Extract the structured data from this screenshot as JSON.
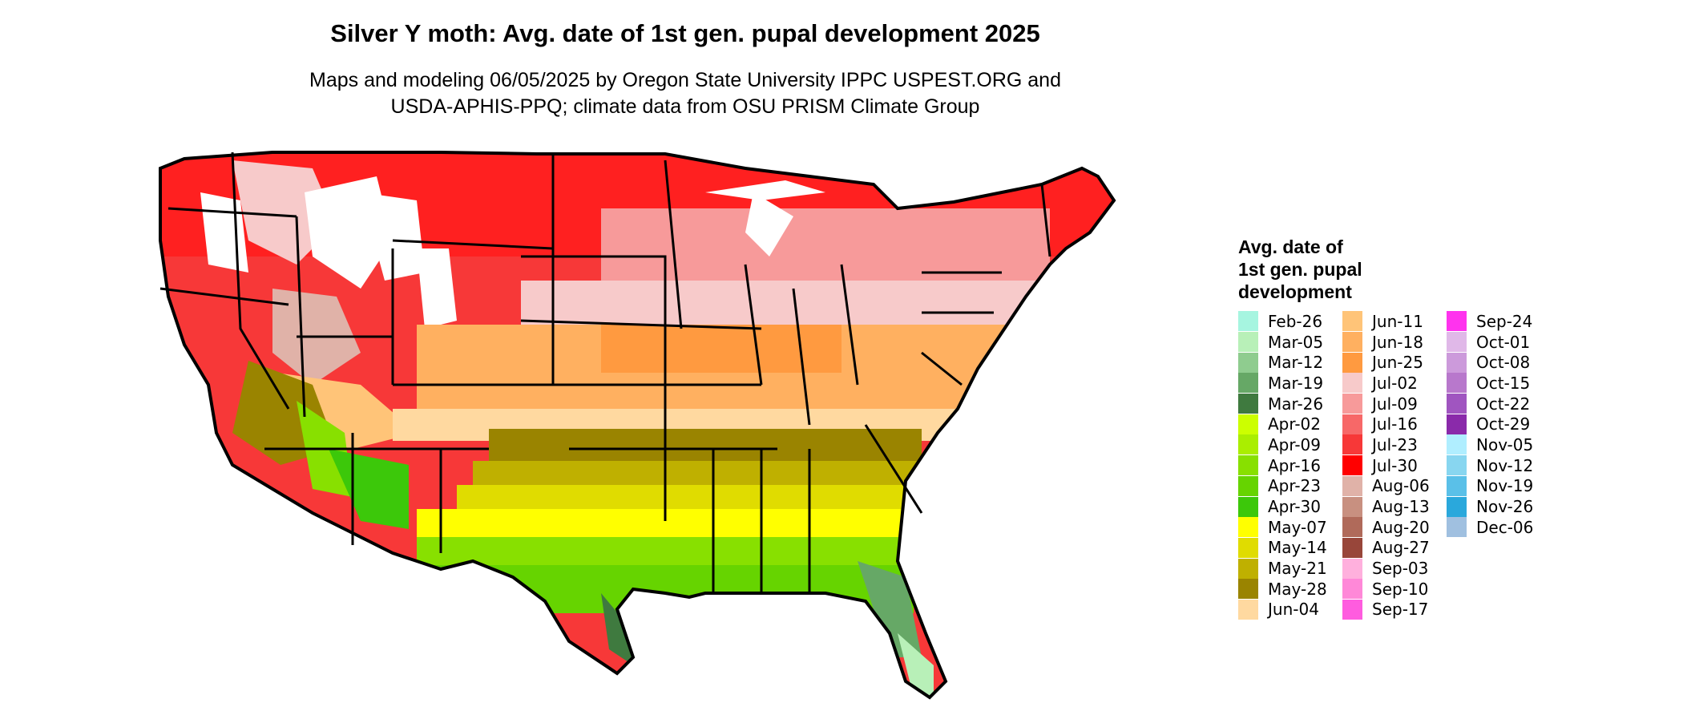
{
  "title": "Silver Y moth: Avg. date of 1st gen. pupal development 2025",
  "subtitle_line1": "Maps and modeling 06/05/2025 by Oregon State University IPPC USPEST.ORG and",
  "subtitle_line2": "USDA-APHIS-PPQ; climate data from OSU PRISM Climate Group",
  "legend": {
    "title_line1": "Avg. date of",
    "title_line2": "1st gen. pupal",
    "title_line3": "development",
    "columns": [
      [
        {
          "label": "Feb-26",
          "color": "#a6f5e0"
        },
        {
          "label": "Mar-05",
          "color": "#b8f0b8"
        },
        {
          "label": "Mar-12",
          "color": "#8fcc8f"
        },
        {
          "label": "Mar-19",
          "color": "#66a866"
        },
        {
          "label": "Mar-26",
          "color": "#3f7a3f"
        },
        {
          "label": "Apr-02",
          "color": "#ccff00"
        },
        {
          "label": "Apr-09",
          "color": "#aaee00"
        },
        {
          "label": "Apr-16",
          "color": "#88e000"
        },
        {
          "label": "Apr-23",
          "color": "#66d400"
        },
        {
          "label": "Apr-30",
          "color": "#3cc80a"
        },
        {
          "label": "May-07",
          "color": "#ffff00"
        },
        {
          "label": "May-14",
          "color": "#e0dc00"
        },
        {
          "label": "May-21",
          "color": "#bfb000"
        },
        {
          "label": "May-28",
          "color": "#9a8400"
        },
        {
          "label": "Jun-04",
          "color": "#ffd9a0"
        }
      ],
      [
        {
          "label": "Jun-11",
          "color": "#ffc478"
        },
        {
          "label": "Jun-18",
          "color": "#ffb060"
        },
        {
          "label": "Jun-25",
          "color": "#ff9a40"
        },
        {
          "label": "Jul-02",
          "color": "#f7caca"
        },
        {
          "label": "Jul-09",
          "color": "#f79a9a"
        },
        {
          "label": "Jul-16",
          "color": "#f76868"
        },
        {
          "label": "Jul-23",
          "color": "#f73838"
        },
        {
          "label": "Jul-30",
          "color": "#ff0000"
        },
        {
          "label": "Aug-06",
          "color": "#e0b2a8"
        },
        {
          "label": "Aug-13",
          "color": "#c89080"
        },
        {
          "label": "Aug-20",
          "color": "#b06a5a"
        },
        {
          "label": "Aug-27",
          "color": "#98463a"
        },
        {
          "label": "Sep-03",
          "color": "#ffb0dd"
        },
        {
          "label": "Sep-10",
          "color": "#ff88d8"
        },
        {
          "label": "Sep-17",
          "color": "#ff5cdf"
        }
      ],
      [
        {
          "label": "Sep-24",
          "color": "#ff33ee"
        },
        {
          "label": "Oct-01",
          "color": "#e0b8e8"
        },
        {
          "label": "Oct-08",
          "color": "#cc9adb"
        },
        {
          "label": "Oct-15",
          "color": "#b878cc"
        },
        {
          "label": "Oct-22",
          "color": "#a055c0"
        },
        {
          "label": "Oct-29",
          "color": "#8a2aaa"
        },
        {
          "label": "Nov-05",
          "color": "#b0eeff"
        },
        {
          "label": "Nov-12",
          "color": "#88d6f0"
        },
        {
          "label": "Nov-19",
          "color": "#5ac0e8"
        },
        {
          "label": "Nov-26",
          "color": "#2aa8dc"
        },
        {
          "label": "Dec-06",
          "color": "#a0c0e0"
        }
      ]
    ]
  }
}
